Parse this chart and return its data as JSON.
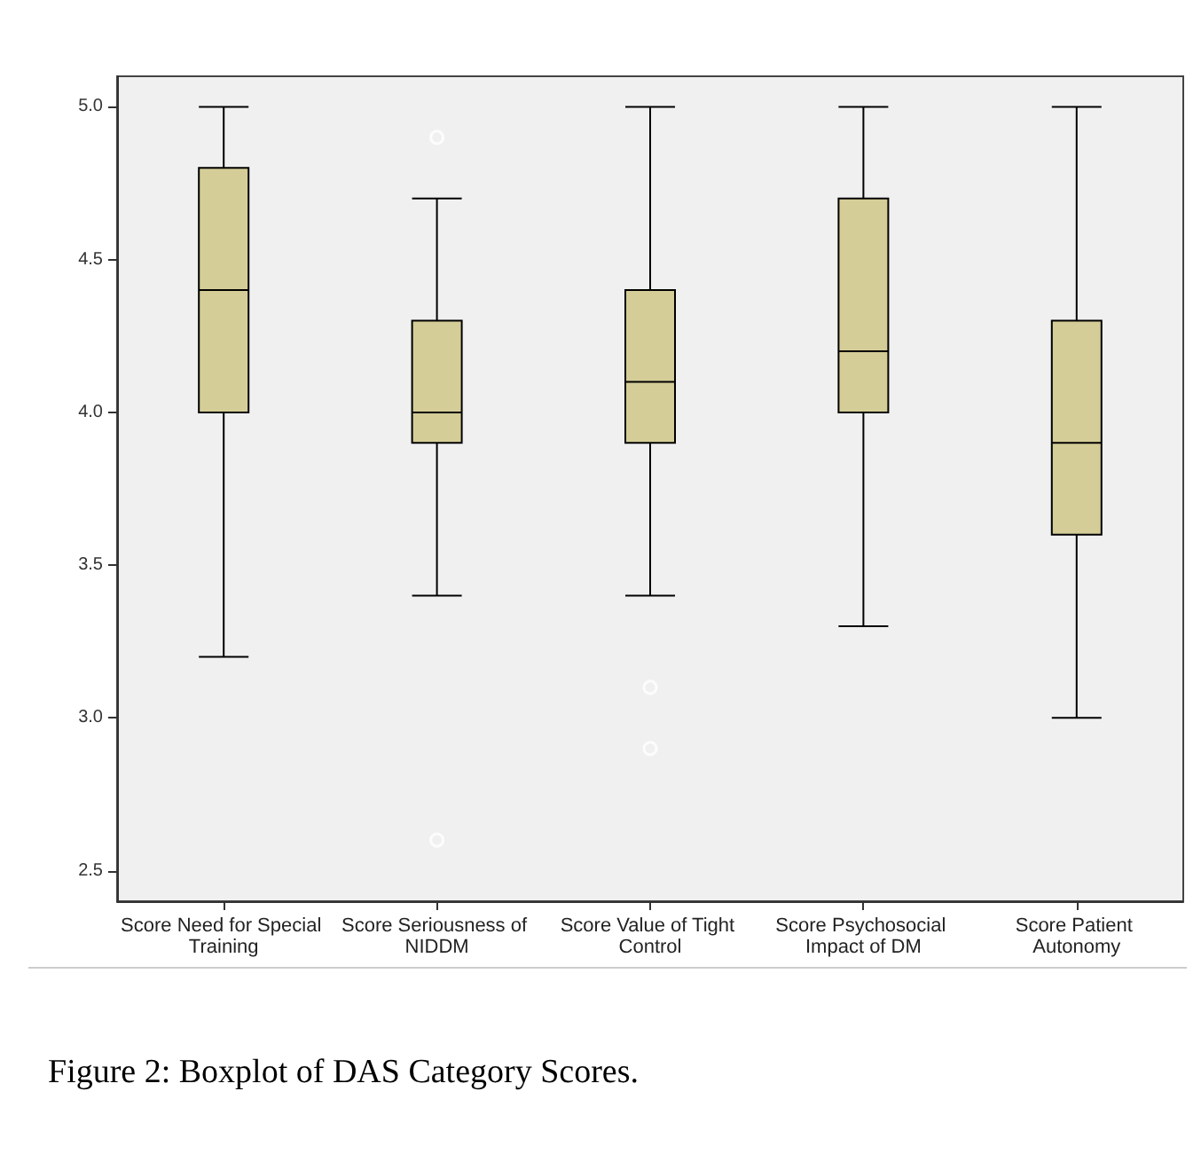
{
  "chart_data": {
    "type": "box",
    "title": "Figure 2: Boxplot of DAS Category Scores.",
    "categories": [
      "Score Need for Special Training",
      "Score Seriousness of NIDDM",
      "Score Value of Tight Control",
      "Score Psychosocial Impact of DM",
      "Score Patient Autonomy"
    ],
    "color": "#d4cd97",
    "boxes": [
      {
        "low": 3.2,
        "q1": 4.0,
        "median": 4.4,
        "q3": 4.8,
        "high": 5.0
      },
      {
        "low": 3.4,
        "q1": 3.9,
        "median": 4.0,
        "q3": 4.3,
        "high": 4.7,
        "outliers": [
          4.9,
          2.6
        ]
      },
      {
        "low": 3.4,
        "q1": 3.9,
        "median": 4.1,
        "q3": 4.4,
        "high": 5.0,
        "outliers": [
          3.1,
          2.9
        ]
      },
      {
        "low": 3.3,
        "q1": 4.0,
        "median": 4.2,
        "q3": 4.7,
        "high": 5.0
      },
      {
        "low": 3.0,
        "q1": 3.6,
        "median": 3.9,
        "q3": 4.3,
        "high": 5.0
      }
    ],
    "ylim": [
      2.4,
      5.1
    ],
    "yticks": [
      2.5,
      {
        "value": 3,
        "label": "3.0"
      },
      3.5,
      {
        "value": 4,
        "label": "4.0"
      },
      4.5,
      {
        "value": 5,
        "label": "5.0"
      }
    ],
    "grid": false
  }
}
